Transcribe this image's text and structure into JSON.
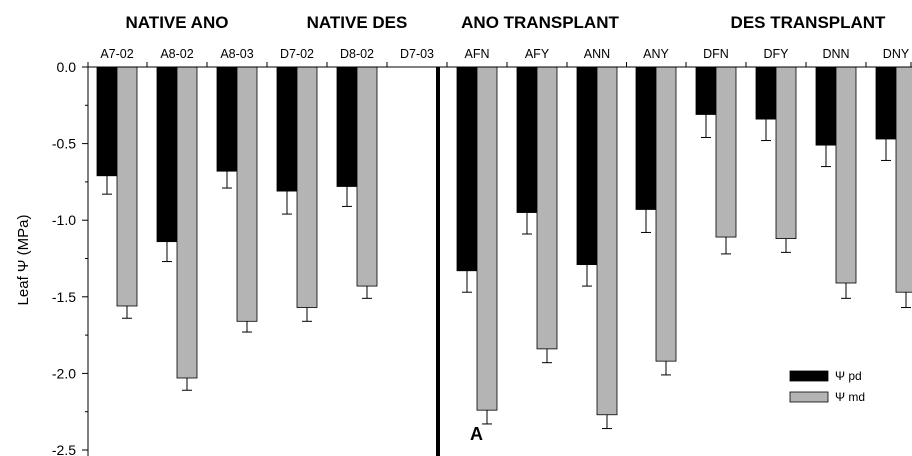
{
  "chart_data": {
    "type": "bar",
    "ylabel": "Leaf Ψ (MPa)",
    "ylim": [
      -2.5,
      0.0
    ],
    "yticks": [
      "0.0",
      "-0.5",
      "-1.0",
      "-1.5",
      "-2.0",
      "-2.5"
    ],
    "ytick_values": [
      0.0,
      -0.5,
      -1.0,
      -1.5,
      -2.0,
      -2.5
    ],
    "panel_letter": "A",
    "groups": [
      "NATIVE ANO",
      "NATIVE DES",
      "ANO TRANSPLANT",
      "DES TRANSPLANT"
    ],
    "categories": [
      "A7-02",
      "A8-02",
      "A8-03",
      "D7-02",
      "D8-02",
      "D7-03",
      "AFN",
      "AFY",
      "ANN",
      "ANY",
      "DFN",
      "DFY",
      "DNN",
      "DNY"
    ],
    "legend": [
      "Ψ pd",
      "Ψ md"
    ],
    "series": [
      {
        "name": "Ψ pd",
        "color": "#000000",
        "values": [
          -0.71,
          -1.14,
          -0.68,
          -0.81,
          -0.78,
          null,
          -1.33,
          -0.95,
          -1.29,
          -0.93,
          -0.31,
          -0.34,
          -0.51,
          -0.47
        ],
        "errors": [
          0.12,
          0.13,
          0.11,
          0.15,
          0.13,
          null,
          0.14,
          0.14,
          0.14,
          0.15,
          0.15,
          0.14,
          0.14,
          0.14
        ]
      },
      {
        "name": "Ψ md",
        "color": "#b4b4b4",
        "values": [
          -1.56,
          -2.03,
          -1.66,
          -1.57,
          -1.43,
          null,
          -2.24,
          -1.84,
          -2.27,
          -1.92,
          -1.11,
          -1.12,
          -1.41,
          -1.47
        ],
        "errors": [
          0.08,
          0.08,
          0.07,
          0.09,
          0.08,
          null,
          0.09,
          0.09,
          0.09,
          0.09,
          0.11,
          0.09,
          0.1,
          0.1
        ]
      }
    ]
  }
}
